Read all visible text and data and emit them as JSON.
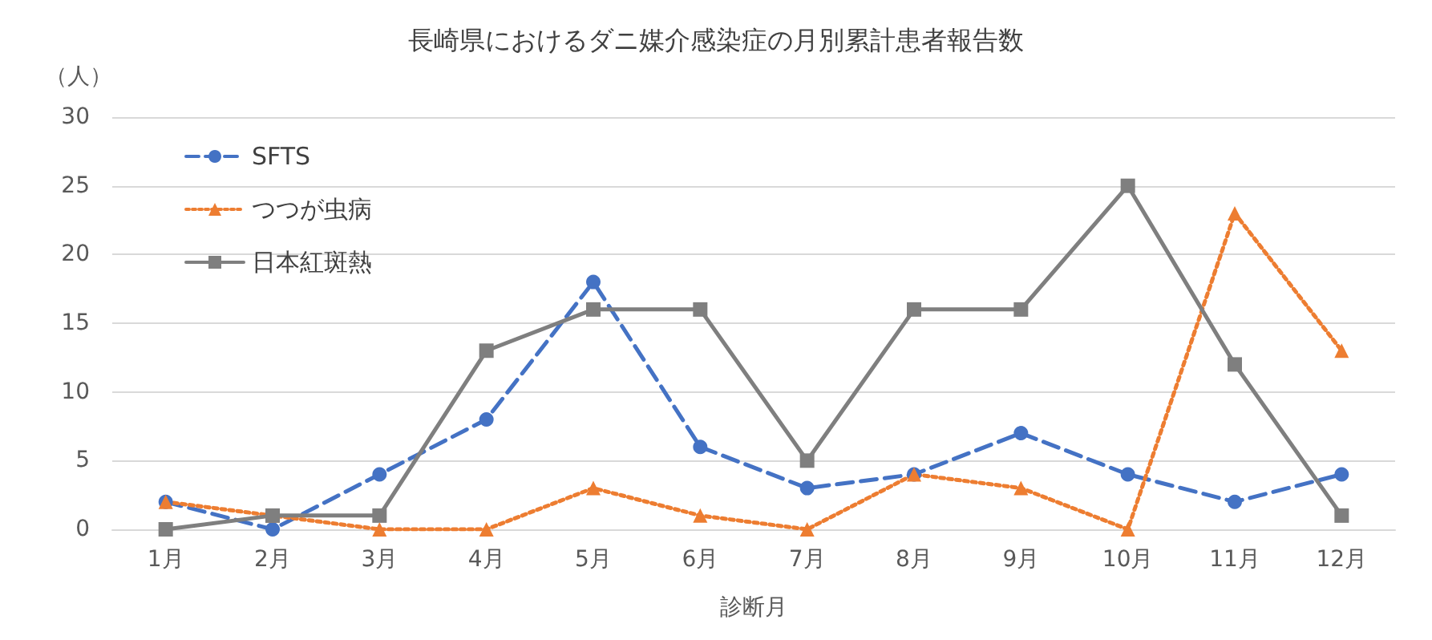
{
  "chart_data": {
    "type": "line",
    "title": "長崎県におけるダニ媒介感染症の月別累計患者報告数",
    "xlabel": "診断月",
    "ylabel": "（人）",
    "categories": [
      "1月",
      "2月",
      "3月",
      "4月",
      "5月",
      "6月",
      "7月",
      "8月",
      "9月",
      "10月",
      "11月",
      "12月"
    ],
    "series": [
      {
        "name": "SFTS",
        "color": "#4472c4",
        "marker": "circle",
        "line_style": "dashed",
        "values": [
          2,
          0,
          4,
          8,
          18,
          6,
          3,
          4,
          7,
          4,
          2,
          4
        ]
      },
      {
        "name": "つつが虫病",
        "color": "#ed7d31",
        "marker": "triangle",
        "line_style": "dotted",
        "values": [
          2,
          1,
          0,
          0,
          3,
          1,
          0,
          4,
          3,
          0,
          23,
          13
        ]
      },
      {
        "name": "日本紅斑熱",
        "color": "#7f7f7f",
        "marker": "square",
        "line_style": "solid",
        "values": [
          0,
          1,
          1,
          13,
          16,
          16,
          5,
          16,
          16,
          25,
          12,
          1
        ]
      }
    ],
    "ylim": [
      0,
      30
    ],
    "yticks": [
      0,
      5,
      10,
      15,
      20,
      25,
      30
    ],
    "grid": "y",
    "legend": "top left"
  }
}
